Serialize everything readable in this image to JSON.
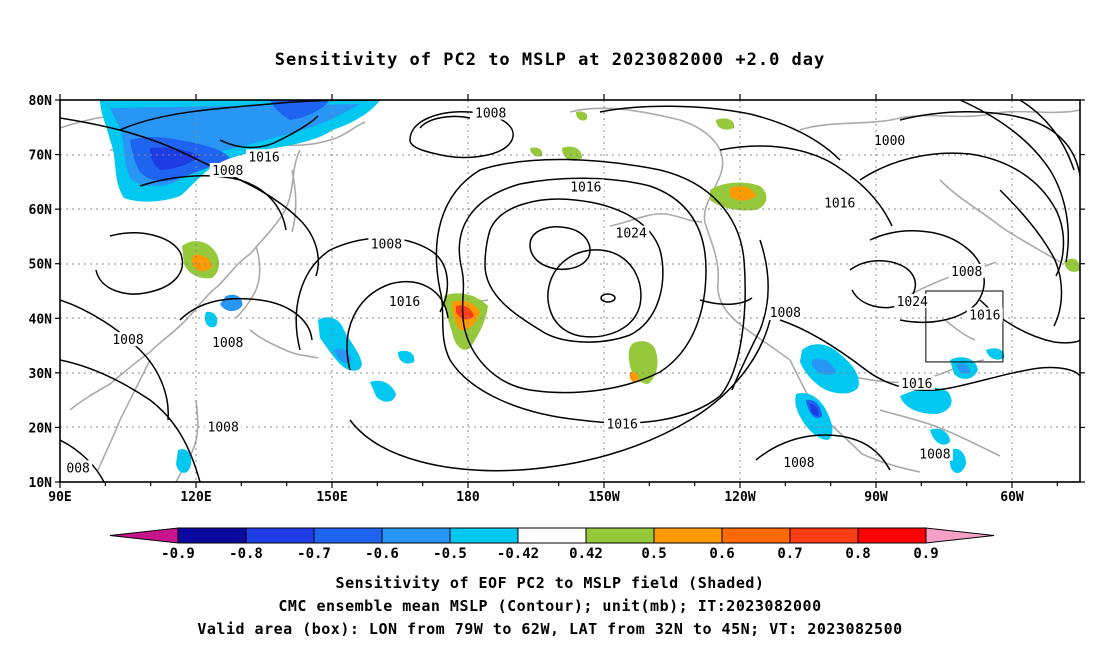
{
  "title": "Sensitivity of PC2 to MSLP at 2023082000 +2.0 day",
  "lat_labels": [
    "80N",
    "70N",
    "60N",
    "50N",
    "40N",
    "30N",
    "20N",
    "10N"
  ],
  "lon_labels": [
    "90E",
    "120E",
    "150E",
    "180",
    "150W",
    "120W",
    "90W",
    "60W"
  ],
  "isobar_labels": [
    {
      "text": "1008",
      "lon": 185,
      "lat": 77.5
    },
    {
      "text": "1000",
      "lon": 273,
      "lat": 72.5
    },
    {
      "text": "1016",
      "lon": 135,
      "lat": 69.5
    },
    {
      "text": "1008",
      "lon": 127,
      "lat": 67.0
    },
    {
      "text": "1016",
      "lon": 206,
      "lat": 64.0
    },
    {
      "text": "1016",
      "lon": 262,
      "lat": 61.0
    },
    {
      "text": "1024",
      "lon": 216,
      "lat": 55.5
    },
    {
      "text": "1008",
      "lon": 162,
      "lat": 53.5
    },
    {
      "text": "1008",
      "lon": 290,
      "lat": 48.5
    },
    {
      "text": "1016",
      "lon": 166,
      "lat": 43.0
    },
    {
      "text": "1024",
      "lon": 278,
      "lat": 43.0
    },
    {
      "text": "1016",
      "lon": 294,
      "lat": 40.5
    },
    {
      "text": "1008",
      "lon": 105,
      "lat": 36.0
    },
    {
      "text": "1008",
      "lon": 127,
      "lat": 35.5
    },
    {
      "text": "1008",
      "lon": 250,
      "lat": 41.0
    },
    {
      "text": "1016",
      "lon": 279,
      "lat": 28.0
    },
    {
      "text": "1016",
      "lon": 214,
      "lat": 20.5
    },
    {
      "text": "1008",
      "lon": 126,
      "lat": 20.0
    },
    {
      "text": "1008",
      "lon": 253,
      "lat": 13.5
    },
    {
      "text": "1008",
      "lon": 283,
      "lat": 15.0
    },
    {
      "text": "008",
      "lon": 94,
      "lat": 12.5
    }
  ],
  "valid_box": {
    "lon_from": 281,
    "lon_to": 298,
    "lat_from": 32,
    "lat_to": 45
  },
  "colorbar": {
    "labels": [
      "-0.9",
      "-0.8",
      "-0.7",
      "-0.6",
      "-0.5",
      "-0.42",
      "0.42",
      "0.5",
      "0.6",
      "0.7",
      "0.8",
      "0.9"
    ],
    "colors": [
      "#0a0aa0",
      "#1e3ce6",
      "#1e64f0",
      "#2896f5",
      "#00c8f0",
      "#ffffff",
      "#96c83c",
      "#ff9900",
      "#ff6a00",
      "#ff3c14",
      "#ff0000"
    ],
    "low_end_color": "#c8148c",
    "high_end_color": "#f5a0c8"
  },
  "caption": [
    "Sensitivity of EOF PC2 to MSLP field (Shaded)",
    "CMC ensemble mean MSLP (Contour); unit(mb); IT:2023082000",
    "Valid area (box): LON from 79W to 62W, LAT from 32N to 45N; VT: 2023082500"
  ]
}
